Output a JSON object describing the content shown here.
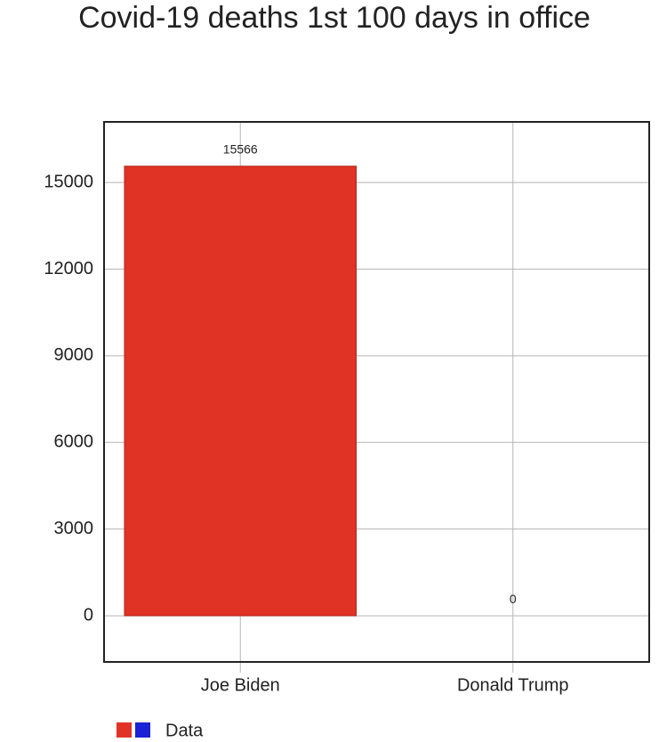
{
  "chart_data": {
    "type": "bar",
    "title": "Covid-19 deaths 1st 100 days in office",
    "categories": [
      "Joe Biden",
      "Donald Trump"
    ],
    "series": [
      {
        "name": "Data",
        "colors": [
          "#e03325",
          "#1a22d6"
        ],
        "values": [
          15566,
          0
        ]
      }
    ],
    "ylim": [
      -1600,
      17100
    ],
    "yticks": [
      0,
      3000,
      6000,
      9000,
      12000,
      15000
    ],
    "grid": true
  }
}
